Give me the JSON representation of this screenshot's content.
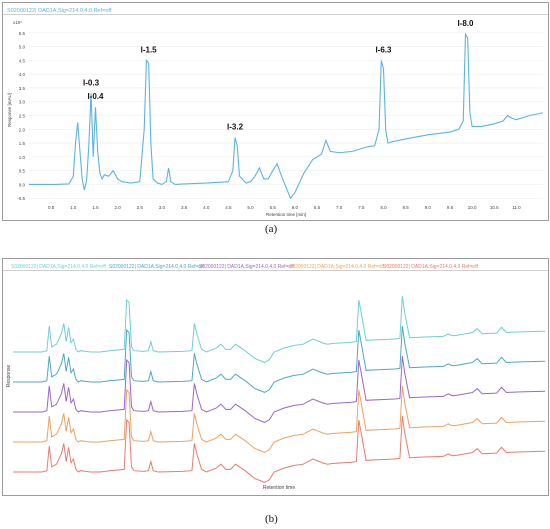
{
  "chart_data": [
    {
      "panel_label": "(a)",
      "type": "line",
      "legend": [
        "S02000122| DAD1A,Sig=214.0,4.0 Ref=off"
      ],
      "y_multiplier": "x10¹",
      "xlabel": "Retention time [min]",
      "ylabel": "Response [mAU]",
      "xlim": [
        0,
        11.6
      ],
      "ylim": [
        -0.6,
        6.0
      ],
      "x_ticks": [
        "0.5",
        "1.0",
        "1.5",
        "2.0",
        "2.5",
        "3.0",
        "3.5",
        "4.0",
        "4.5",
        "5.0",
        "5.5",
        "6.0",
        "6.5",
        "7.0",
        "7.5",
        "8.0",
        "8.5",
        "9.0",
        "9.5",
        "10.0",
        "10.5",
        "11.0"
      ],
      "y_ticks": [
        "-0.5",
        "0.0",
        "0.5",
        "1.0",
        "1.5",
        "2.0",
        "2.5",
        "3.0",
        "3.5",
        "4.0",
        "4.5",
        "5.0",
        "5.5"
      ],
      "color": "#5ab4e5",
      "peaks": [
        {
          "label": "I-0.3",
          "x": 1.4,
          "y": 3.3
        },
        {
          "label": "I-0.4",
          "x": 1.5,
          "y": 2.8
        },
        {
          "label": "I-1.5",
          "x": 2.7,
          "y": 4.5
        },
        {
          "label": "I-3.2",
          "x": 4.65,
          "y": 1.7
        },
        {
          "label": "I-6.3",
          "x": 8.0,
          "y": 4.5
        },
        {
          "label": "I-8.0",
          "x": 9.85,
          "y": 5.45
        }
      ],
      "series": [
        {
          "x": [
            0,
            0.3,
            0.6,
            0.9,
            1.0,
            1.05,
            1.1,
            1.15,
            1.2,
            1.25,
            1.3,
            1.35,
            1.4,
            1.45,
            1.5,
            1.55,
            1.6,
            1.65,
            1.7,
            1.8,
            1.9,
            2.0,
            2.1,
            2.3,
            2.5,
            2.6,
            2.65,
            2.7,
            2.75,
            2.8,
            2.9,
            3.0,
            3.1,
            3.15,
            3.2,
            3.3,
            3.5,
            4.0,
            4.5,
            4.6,
            4.65,
            4.7,
            4.75,
            4.9,
            5.0,
            5.1,
            5.2,
            5.3,
            5.4,
            5.5,
            5.6,
            5.7,
            5.8,
            5.9,
            6.0,
            6.2,
            6.4,
            6.6,
            6.7,
            6.8,
            7.0,
            7.3,
            7.6,
            7.8,
            7.9,
            7.95,
            8.0,
            8.05,
            8.1,
            8.2,
            8.5,
            9.0,
            9.5,
            9.7,
            9.8,
            9.85,
            9.9,
            9.95,
            10.0,
            10.2,
            10.5,
            10.7,
            10.8,
            10.9,
            11.0,
            11.3,
            11.6
          ],
          "y": [
            0,
            0,
            0,
            0.02,
            0.3,
            1.5,
            2.25,
            1.2,
            0.2,
            -0.2,
            0.15,
            1.4,
            3.3,
            1.0,
            2.8,
            1.2,
            0.4,
            0.2,
            0.35,
            0.3,
            0.5,
            0.2,
            0.1,
            0.05,
            0.1,
            2.0,
            4.5,
            4.4,
            1.5,
            0.2,
            0.05,
            0.0,
            0.1,
            0.6,
            0.1,
            0.0,
            0.02,
            0.05,
            0.1,
            0.5,
            1.7,
            1.4,
            0.3,
            0.05,
            0.1,
            0.3,
            0.6,
            0.2,
            0.2,
            0.5,
            0.75,
            0.3,
            -0.1,
            -0.5,
            -0.3,
            0.4,
            0.9,
            1.1,
            1.6,
            1.2,
            1.15,
            1.2,
            1.35,
            1.4,
            2.0,
            4.5,
            4.2,
            2.0,
            1.5,
            1.55,
            1.65,
            1.8,
            1.9,
            2.0,
            2.3,
            5.45,
            5.3,
            2.6,
            2.1,
            2.1,
            2.2,
            2.3,
            2.5,
            2.4,
            2.35,
            2.5,
            2.6
          ]
        }
      ]
    },
    {
      "panel_label": "(b)",
      "type": "line",
      "xlabel": "Retention time",
      "ylabel": "Response",
      "series": [
        {
          "name": "S02000122| DAD1A,Sig=214.0,4.0 Ref=off",
          "color": "#6fd0d6",
          "offset": 4
        },
        {
          "name": "S02000122| DAD1A,Sig=214.0,4.0 Ref=off",
          "color": "#4da7c9",
          "offset": 3
        },
        {
          "name": "S02000122| DAD1A,Sig=214.0,4.0 Ref=off",
          "color": "#9b66cc",
          "offset": 2
        },
        {
          "name": "S02000122| DAD1A,Sig=214.0,4.0 Ref=off",
          "color": "#f0a060",
          "offset": 1
        },
        {
          "name": "S02000122| DAD1A,Sig=214.0,4.0 Ref=off",
          "color": "#ee7a6a",
          "offset": 0
        }
      ],
      "base_profile": {
        "x": [
          0,
          0.3,
          0.6,
          0.7,
          0.75,
          0.8,
          0.9,
          1.0,
          1.05,
          1.1,
          1.15,
          1.2,
          1.25,
          1.3,
          1.35,
          1.4,
          1.5,
          1.6,
          1.8,
          2.0,
          2.3,
          2.35,
          2.4,
          2.45,
          2.5,
          2.7,
          2.8,
          2.85,
          2.9,
          3.0,
          3.5,
          3.7,
          3.75,
          3.8,
          3.9,
          4.0,
          4.2,
          4.3,
          4.4,
          4.5,
          4.6,
          4.8,
          5.0,
          5.2,
          5.3,
          5.4,
          5.6,
          5.8,
          6.0,
          6.2,
          6.4,
          6.5,
          6.6,
          6.8,
          7.0,
          7.1,
          7.15,
          7.2,
          7.3,
          7.6,
          7.9,
          8.0,
          8.05,
          8.1,
          8.2,
          8.5,
          8.9,
          9.0,
          9.05,
          9.1,
          9.2,
          9.5,
          9.6,
          9.7,
          10.0,
          10.1,
          10.2,
          10.5,
          11.0
        ],
        "y": [
          0,
          0,
          0,
          0.1,
          2.0,
          0.4,
          0.6,
          1.4,
          2.2,
          0.8,
          1.9,
          0.7,
          1.0,
          0.2,
          0.0,
          0.1,
          0.05,
          0.0,
          0.0,
          0.1,
          0.2,
          4.0,
          3.8,
          0.4,
          0.1,
          0.05,
          0.1,
          0.8,
          0.1,
          0.0,
          0.05,
          0.1,
          2.2,
          1.4,
          0.2,
          0.0,
          0.3,
          0.6,
          0.2,
          0.2,
          0.6,
          0.1,
          -0.5,
          -0.8,
          -0.6,
          0.0,
          0.3,
          0.5,
          0.6,
          1.0,
          0.7,
          0.6,
          0.65,
          0.7,
          0.75,
          0.8,
          4.0,
          3.0,
          0.9,
          0.95,
          1.0,
          1.05,
          4.3,
          3.0,
          1.1,
          1.15,
          1.2,
          1.4,
          1.3,
          1.25,
          1.3,
          1.5,
          1.8,
          1.4,
          1.45,
          1.9,
          1.5,
          1.55,
          1.6
        ]
      }
    }
  ],
  "labels": {
    "panel_a": "(a)",
    "panel_b": "(b)"
  }
}
